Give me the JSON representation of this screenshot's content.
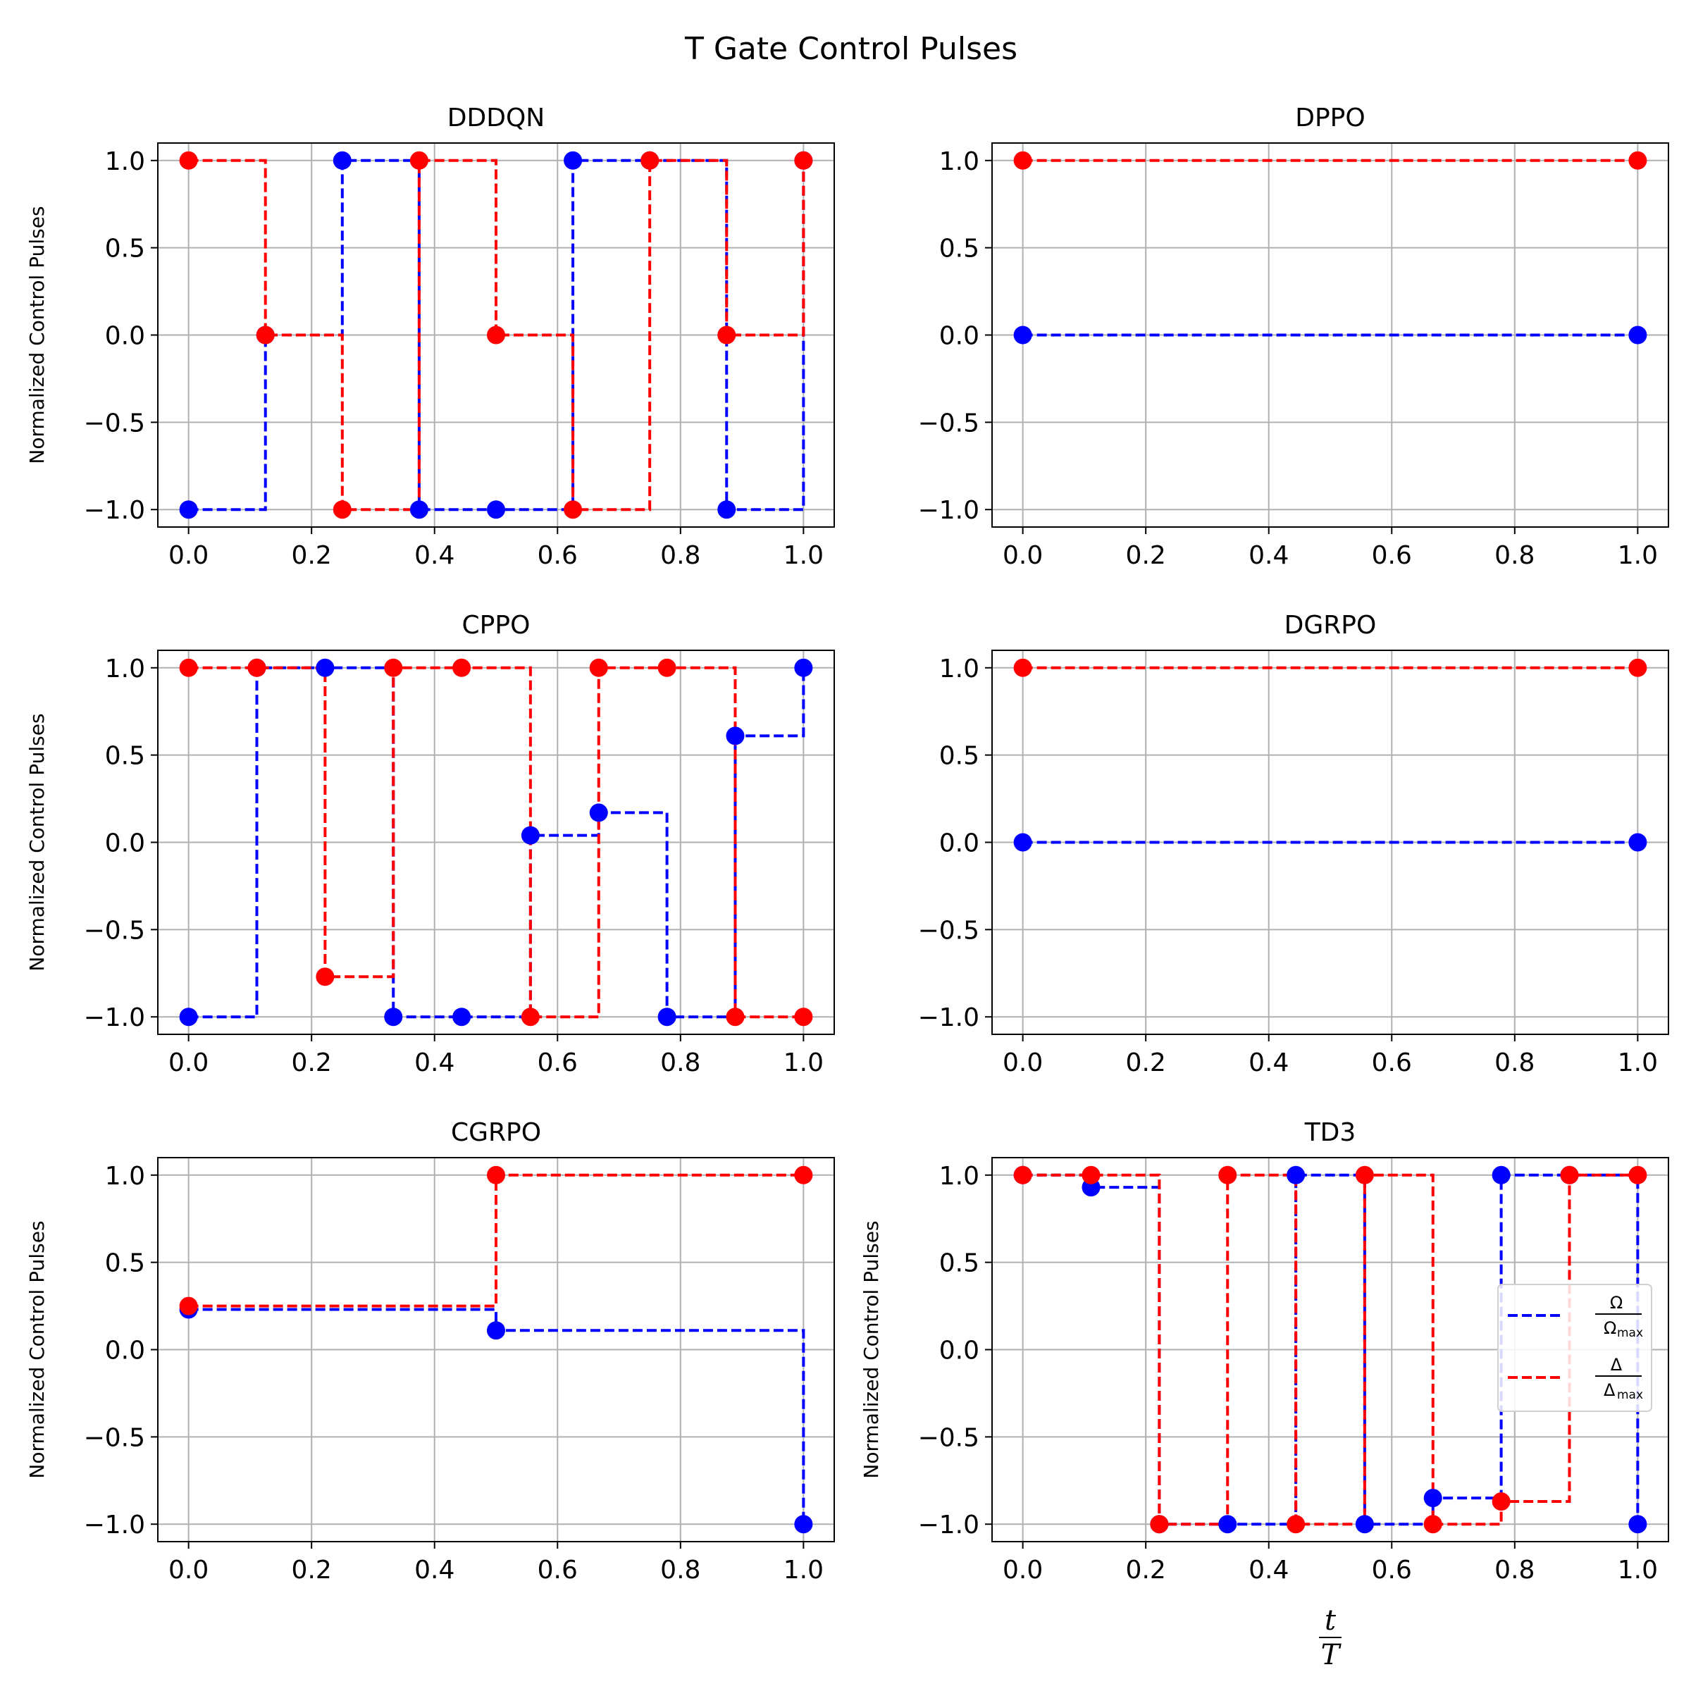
{
  "title": "T Gate Control Pulses",
  "colors": {
    "omega": "#0000ff",
    "delta": "#ff0000",
    "grid": "#b0b0b0"
  },
  "legend": {
    "placement": "center-right",
    "panel": "TD3",
    "omega": {
      "num": "Ω",
      "den": "Ω",
      "sub": "max"
    },
    "delta": {
      "num": "Δ",
      "den": "Δ",
      "sub": "max"
    }
  },
  "xlabel": {
    "num": "t",
    "den": "T"
  },
  "ylabel": "Normalized Control Pulses",
  "xticks": [
    "0.0",
    "0.2",
    "0.4",
    "0.6",
    "0.8",
    "1.0"
  ],
  "yticks": [
    "−1.0",
    "−0.5",
    "0.0",
    "0.5",
    "1.0"
  ],
  "chart_data": [
    {
      "type": "line",
      "title": "DDDQN",
      "xlim": [
        -0.05,
        1.05
      ],
      "ylim": [
        -1.1,
        1.1
      ],
      "grid": true,
      "series": [
        {
          "key": "omega",
          "x": [
            0,
            0.125,
            0.25,
            0.375,
            0.5,
            0.625,
            0.75,
            0.875,
            1.0
          ],
          "y": [
            -1,
            0,
            1,
            -1,
            -1,
            1,
            1,
            -1,
            1
          ]
        },
        {
          "key": "delta",
          "x": [
            0,
            0.125,
            0.25,
            0.375,
            0.5,
            0.625,
            0.75,
            0.875,
            1.0
          ],
          "y": [
            1,
            0,
            -1,
            1,
            0,
            -1,
            1,
            0,
            1
          ]
        }
      ]
    },
    {
      "type": "line",
      "title": "DPPO",
      "xlim": [
        -0.05,
        1.05
      ],
      "ylim": [
        -1.1,
        1.1
      ],
      "grid": true,
      "series": [
        {
          "key": "omega",
          "x": [
            0,
            1.0
          ],
          "y": [
            0,
            0
          ]
        },
        {
          "key": "delta",
          "x": [
            0,
            1.0
          ],
          "y": [
            1,
            1
          ]
        }
      ]
    },
    {
      "type": "line",
      "title": "CPPO",
      "xlim": [
        -0.05,
        1.05
      ],
      "ylim": [
        -1.1,
        1.1
      ],
      "grid": true,
      "series": [
        {
          "key": "omega",
          "x": [
            0,
            0.111,
            0.222,
            0.333,
            0.444,
            0.556,
            0.667,
            0.778,
            0.889,
            1.0
          ],
          "y": [
            -1,
            1,
            1,
            -1,
            -1,
            0.04,
            0.17,
            -1,
            0.61,
            1
          ]
        },
        {
          "key": "delta",
          "x": [
            0,
            0.111,
            0.222,
            0.333,
            0.444,
            0.556,
            0.667,
            0.778,
            0.889,
            1.0
          ],
          "y": [
            1,
            1,
            -0.77,
            1,
            1,
            -1,
            1,
            1,
            -1,
            -1
          ]
        }
      ]
    },
    {
      "type": "line",
      "title": "DGRPO",
      "xlim": [
        -0.05,
        1.05
      ],
      "ylim": [
        -1.1,
        1.1
      ],
      "grid": true,
      "series": [
        {
          "key": "omega",
          "x": [
            0,
            1.0
          ],
          "y": [
            0,
            0
          ]
        },
        {
          "key": "delta",
          "x": [
            0,
            1.0
          ],
          "y": [
            1,
            1
          ]
        }
      ]
    },
    {
      "type": "line",
      "title": "CGRPO",
      "xlim": [
        -0.05,
        1.05
      ],
      "ylim": [
        -1.1,
        1.1
      ],
      "grid": true,
      "series": [
        {
          "key": "omega",
          "x": [
            0,
            0.5,
            1.0
          ],
          "y": [
            0.23,
            0.11,
            -1
          ]
        },
        {
          "key": "delta",
          "x": [
            0,
            0.5,
            1.0
          ],
          "y": [
            0.25,
            1,
            1
          ]
        }
      ]
    },
    {
      "type": "line",
      "title": "TD3",
      "xlim": [
        -0.05,
        1.05
      ],
      "ylim": [
        -1.1,
        1.1
      ],
      "grid": true,
      "series": [
        {
          "key": "omega",
          "x": [
            0,
            0.111,
            0.222,
            0.333,
            0.444,
            0.556,
            0.667,
            0.778,
            0.889,
            1.0
          ],
          "y": [
            1,
            0.93,
            -1,
            -1,
            1,
            -1,
            -0.85,
            1,
            1,
            -1
          ]
        },
        {
          "key": "delta",
          "x": [
            0,
            0.111,
            0.222,
            0.333,
            0.444,
            0.556,
            0.667,
            0.778,
            0.889,
            1.0
          ],
          "y": [
            1,
            1,
            -1,
            1,
            -1,
            1,
            -1,
            -0.87,
            1,
            1
          ]
        }
      ]
    }
  ]
}
